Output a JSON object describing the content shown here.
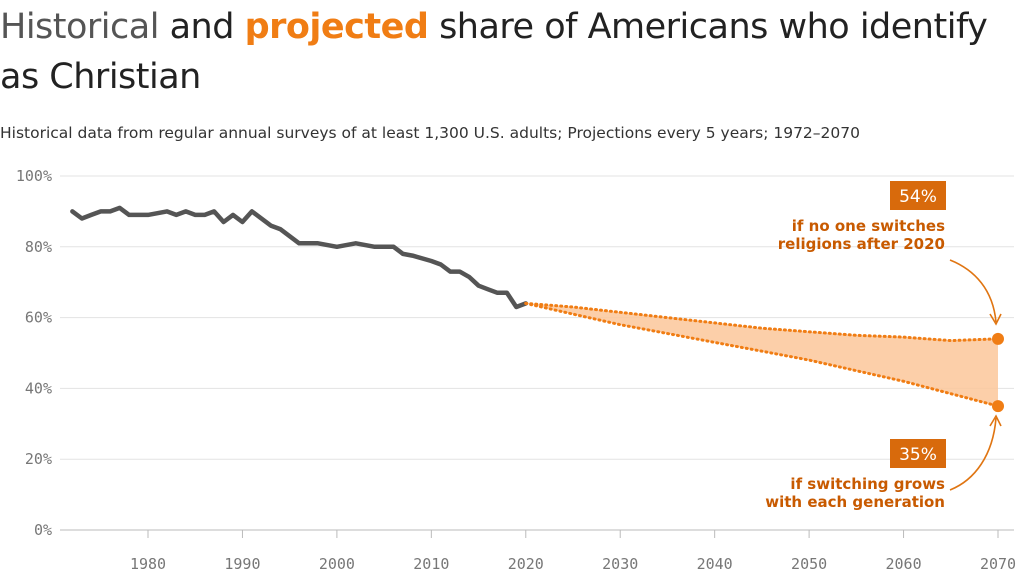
{
  "title": {
    "part1": "Historical",
    "part2": " and ",
    "part3": "projected",
    "part4": " share of Americans who identify as Christian"
  },
  "subtitle": "Historical data from regular annual surveys of at least 1,300 U.S. adults; Projections every 5 years; 1972–2070",
  "colors": {
    "historical": "#555555",
    "projected": "#f07d14",
    "band": "#fcc79a",
    "badge": "#d86a0c"
  },
  "chart_data": {
    "type": "line",
    "x_ticks": [
      "1980",
      "1990",
      "2000",
      "2010",
      "2020",
      "2030",
      "2040",
      "2050",
      "2060",
      "2070"
    ],
    "y_ticks": [
      "0%",
      "20%",
      "40%",
      "60%",
      "80%",
      "100%"
    ],
    "xlim": [
      1971,
      2072
    ],
    "ylim": [
      0,
      100
    ],
    "grid": true,
    "series": [
      {
        "values": [
          [
            1972,
            90
          ],
          [
            1973,
            88
          ],
          [
            1974,
            89
          ],
          [
            1975,
            90
          ],
          [
            1976,
            90
          ],
          [
            1977,
            91
          ],
          [
            1978,
            89
          ],
          [
            1980,
            89
          ],
          [
            1982,
            90
          ],
          [
            1983,
            89
          ],
          [
            1984,
            90
          ],
          [
            1985,
            89
          ],
          [
            1986,
            89
          ],
          [
            1987,
            90
          ],
          [
            1988,
            87
          ],
          [
            1989,
            89
          ],
          [
            1990,
            87
          ],
          [
            1991,
            90
          ],
          [
            1993,
            86
          ],
          [
            1994,
            85
          ],
          [
            1996,
            81
          ],
          [
            1998,
            81
          ],
          [
            2000,
            80
          ],
          [
            2002,
            81
          ],
          [
            2004,
            80
          ],
          [
            2006,
            80
          ],
          [
            2007,
            78
          ],
          [
            2008,
            77.5
          ],
          [
            2010,
            76
          ],
          [
            2011,
            75
          ],
          [
            2012,
            73
          ],
          [
            2013,
            73
          ],
          [
            2014,
            71.5
          ],
          [
            2015,
            69
          ],
          [
            2016,
            68
          ],
          [
            2017,
            67
          ],
          [
            2018,
            67
          ],
          [
            2019,
            63
          ],
          [
            2020,
            64
          ]
        ]
      },
      {
        "values": [
          [
            2020,
            64
          ],
          [
            2025,
            63
          ],
          [
            2030,
            61.5
          ],
          [
            2035,
            60
          ],
          [
            2040,
            58.5
          ],
          [
            2045,
            57
          ],
          [
            2050,
            56
          ],
          [
            2055,
            55
          ],
          [
            2060,
            54.5
          ],
          [
            2065,
            53.5
          ],
          [
            2070,
            54
          ]
        ]
      },
      {
        "values": [
          [
            2020,
            64
          ],
          [
            2025,
            61
          ],
          [
            2030,
            58
          ],
          [
            2035,
            55.5
          ],
          [
            2040,
            53
          ],
          [
            2045,
            50.5
          ],
          [
            2050,
            48
          ],
          [
            2055,
            45
          ],
          [
            2060,
            42
          ],
          [
            2065,
            38.5
          ],
          [
            2070,
            35
          ]
        ]
      }
    ],
    "annotations": [
      {
        "badge": "54%",
        "line1": "if no one switches",
        "line2": "religions after 2020"
      },
      {
        "badge": "35%",
        "line1": "if switching grows",
        "line2": "with each generation"
      }
    ]
  }
}
